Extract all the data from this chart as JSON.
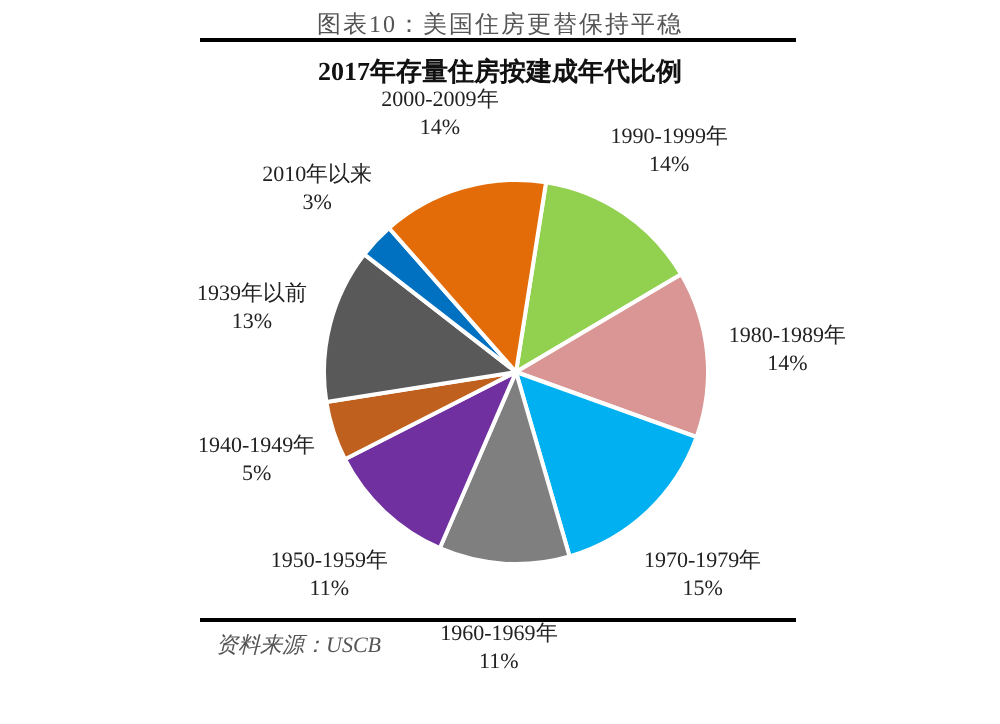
{
  "chart_data": {
    "type": "pie",
    "title": "图表10：美国住房更替保持平稳",
    "subtitle": "2017年存量住房按建成年代比例",
    "categories": [
      "1990-1999年",
      "1980-1989年",
      "1970-1979年",
      "1960-1969年",
      "1950-1959年",
      "1940-1949年",
      "1939年以前",
      "2010年以来",
      "2000-2009年"
    ],
    "values": [
      14,
      14,
      15,
      11,
      11,
      5,
      13,
      3,
      14
    ],
    "value_labels": [
      "14%",
      "14%",
      "15%",
      "11%",
      "11%",
      "5%",
      "13%",
      "3%",
      "14%"
    ],
    "colors": [
      "#92d050",
      "#d99694",
      "#00b0f0",
      "#7f7f7f",
      "#7030a0",
      "#c0601e",
      "#595959",
      "#0070c0",
      "#e36c09"
    ],
    "annotations": [
      "资料来源：USCB"
    ]
  }
}
